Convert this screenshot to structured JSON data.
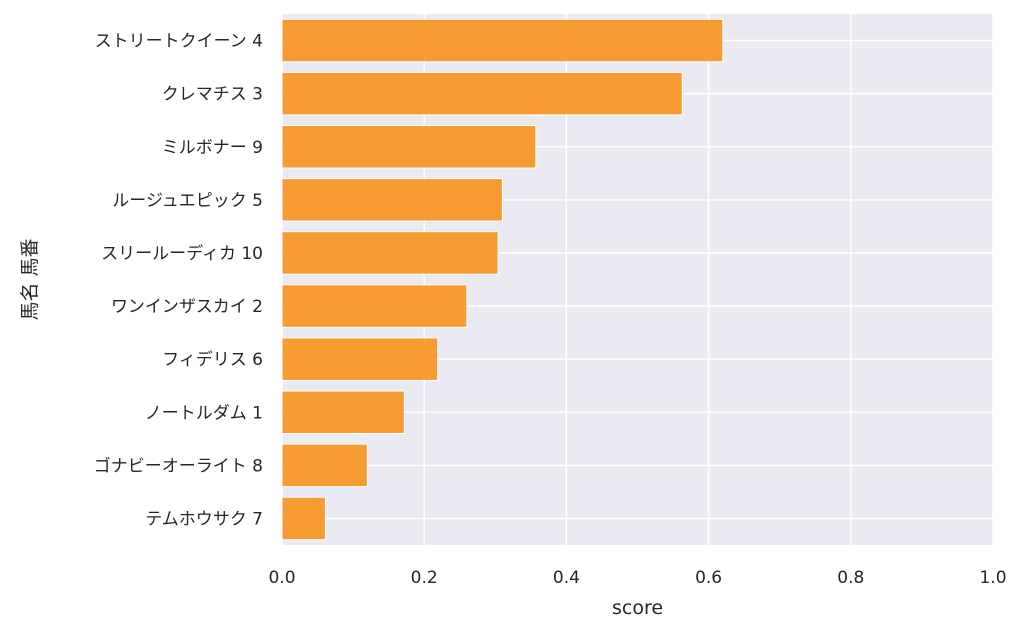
{
  "chart_data": {
    "type": "bar",
    "orientation": "horizontal",
    "xlabel": "score",
    "ylabel": "馬名 馬番",
    "xlim": [
      0.0,
      1.0
    ],
    "xticks": [
      "0.0",
      "0.2",
      "0.4",
      "0.6",
      "0.8",
      "1.0"
    ],
    "grid": true,
    "legend": "none",
    "bar_color": "#f7941d",
    "background_color": "#eaeaf2",
    "grid_color": "#ffffff",
    "categories": [
      "ストリートクイーン 4",
      "クレマチス 3",
      "ミルボナー 9",
      "ルージュエピック 5",
      "スリールーディカ 10",
      "ワンインザスカイ 2",
      "フィデリス 6",
      "ノートルダム 1",
      "ゴナビーオーライト 8",
      "テムホウサク 7"
    ],
    "values": [
      0.62,
      0.563,
      0.357,
      0.31,
      0.304,
      0.26,
      0.219,
      0.172,
      0.12,
      0.061
    ]
  }
}
